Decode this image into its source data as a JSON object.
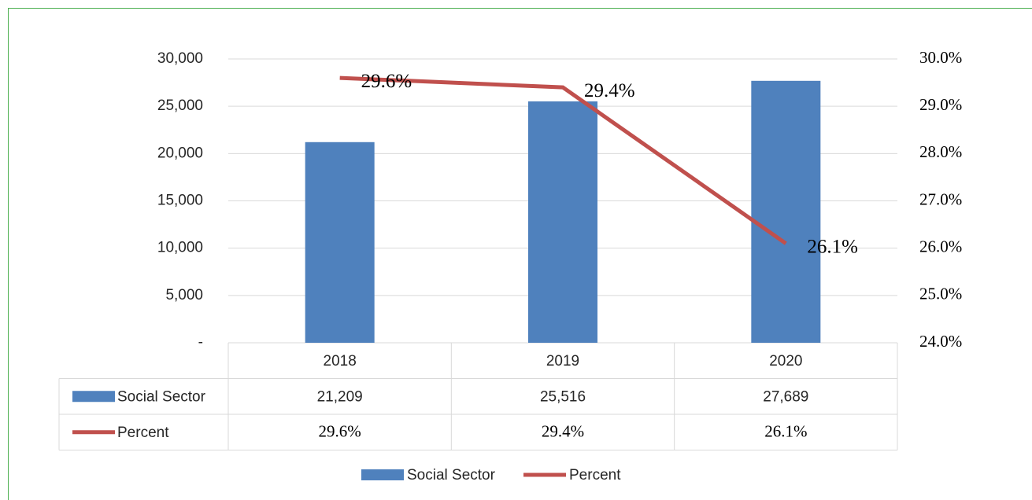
{
  "chart_data": {
    "type": "bar",
    "categories": [
      "2018",
      "2019",
      "2020"
    ],
    "series": [
      {
        "name": "Social Sector",
        "type": "bar",
        "color": "#4f81bd",
        "values": [
          21209,
          25516,
          27689
        ],
        "value_labels": [
          "21,209",
          "25,516",
          "27,689"
        ]
      },
      {
        "name": "Percent",
        "type": "line",
        "axis": "y2",
        "color": "#c0504d",
        "values": [
          29.6,
          29.4,
          26.1
        ],
        "value_labels": [
          "29.6%",
          "29.4%",
          "26.1%"
        ]
      }
    ],
    "ylim": [
      0,
      30000
    ],
    "yticks": [
      {
        "value": 0,
        "label": "-"
      },
      {
        "value": 5000,
        "label": "5,000"
      },
      {
        "value": 10000,
        "label": "10,000"
      },
      {
        "value": 15000,
        "label": "15,000"
      },
      {
        "value": 20000,
        "label": "20,000"
      },
      {
        "value": 25000,
        "label": "25,000"
      },
      {
        "value": 30000,
        "label": "30,000"
      }
    ],
    "y2lim": [
      24,
      30
    ],
    "y2ticks": [
      {
        "value": 24,
        "label": "24.0%"
      },
      {
        "value": 25,
        "label": "25.0%"
      },
      {
        "value": 26,
        "label": "26.0%"
      },
      {
        "value": 27,
        "label": "27.0%"
      },
      {
        "value": 28,
        "label": "28.0%"
      },
      {
        "value": 29,
        "label": "29.0%"
      },
      {
        "value": 30,
        "label": "30.0%"
      }
    ],
    "grid": true,
    "legend": "bottom"
  }
}
